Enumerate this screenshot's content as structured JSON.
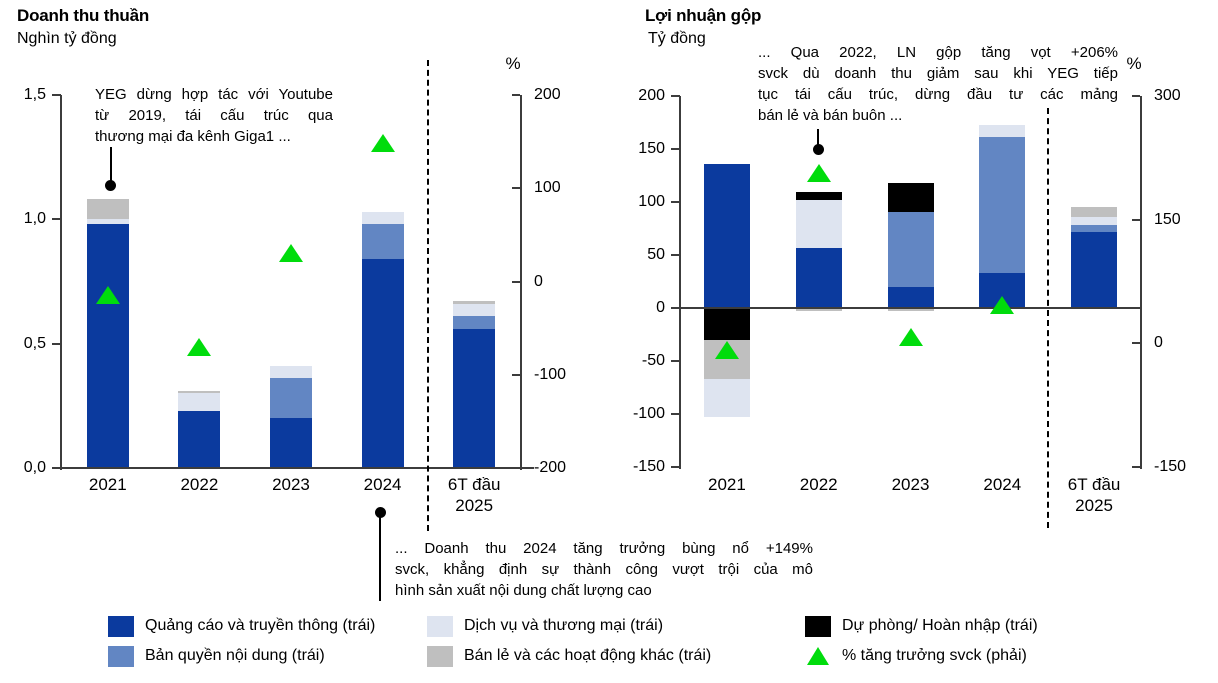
{
  "colors": {
    "dark_blue": "#0B3A9E",
    "medium_blue": "#6286C3",
    "light_blue": "#DEE4F0",
    "gray": "#BFBFBF",
    "black": "#000000",
    "green": "#00DC0C",
    "axis": "#3C3C3C"
  },
  "series_names": {
    "dark_blue": "Quảng cáo và truyền thông",
    "medium_blue": "Bản quyền nội dung",
    "light_blue": "Dịch vụ và thương mại",
    "gray": "Bán lẻ và các hoạt động khác",
    "black": "Dự phòng/ Hoàn nhập"
  },
  "chart_data": [
    {
      "type": "bar",
      "title": "Doanh thu thuần",
      "unit": "Nghìn tỷ đồng",
      "categories": [
        "2021",
        "2022",
        "2023",
        "2024",
        "6T đầu\n2025"
      ],
      "y_axis": {
        "min": 0,
        "max": 1.5,
        "ticks": [
          {
            "label": "1,5",
            "value": 1.5
          },
          {
            "label": "1,0",
            "value": 1.0
          },
          {
            "label": "0,5",
            "value": 0.5
          },
          {
            "label": "0,0",
            "value": 0.0
          }
        ]
      },
      "y2_axis": {
        "symbol": "%",
        "min": -200,
        "max": 200,
        "ticks": [
          {
            "label": "200",
            "value": 200
          },
          {
            "label": "100",
            "value": 100
          },
          {
            "label": "0",
            "value": 0
          },
          {
            "label": "-100",
            "value": -100
          },
          {
            "label": "-200",
            "value": -200
          }
        ]
      },
      "bars": [
        {
          "category": "2021",
          "segments": [
            {
              "key": "dark_blue",
              "value": 0.98
            },
            {
              "key": "light_blue",
              "value": 0.02
            },
            {
              "key": "gray",
              "value": 0.08
            }
          ]
        },
        {
          "category": "2022",
          "segments": [
            {
              "key": "dark_blue",
              "value": 0.23
            },
            {
              "key": "light_blue",
              "value": 0.07
            },
            {
              "key": "gray",
              "value": 0.01
            }
          ]
        },
        {
          "category": "2023",
          "segments": [
            {
              "key": "dark_blue",
              "value": 0.2
            },
            {
              "key": "medium_blue",
              "value": 0.16
            },
            {
              "key": "light_blue",
              "value": 0.05
            }
          ]
        },
        {
          "category": "2024",
          "segments": [
            {
              "key": "dark_blue",
              "value": 0.84
            },
            {
              "key": "medium_blue",
              "value": 0.14
            },
            {
              "key": "light_blue",
              "value": 0.05
            }
          ]
        },
        {
          "category": "6T đầu 2025",
          "segments": [
            {
              "key": "dark_blue",
              "value": 0.56
            },
            {
              "key": "medium_blue",
              "value": 0.05
            },
            {
              "key": "light_blue",
              "value": 0.05
            },
            {
              "key": "gray",
              "value": 0.01
            }
          ]
        }
      ],
      "growth": {
        "name": "% tăng trưởng svck (phải)",
        "axis": "y2",
        "values": [
          -14,
          -70,
          31,
          149,
          null
        ]
      }
    },
    {
      "type": "bar",
      "title": "Lợi nhuận gộp",
      "unit": "Tỷ đồng",
      "categories": [
        "2021",
        "2022",
        "2023",
        "2024",
        "6T đầu\n2025"
      ],
      "y_axis": {
        "min": -150,
        "max": 200,
        "ticks": [
          {
            "label": "200",
            "value": 200
          },
          {
            "label": "150",
            "value": 150
          },
          {
            "label": "100",
            "value": 100
          },
          {
            "label": "50",
            "value": 50
          },
          {
            "label": "0",
            "value": 0
          },
          {
            "label": "-50",
            "value": -50
          },
          {
            "label": "-100",
            "value": -100
          },
          {
            "label": "-150",
            "value": -150
          }
        ]
      },
      "y2_axis": {
        "symbol": "%",
        "min": -150,
        "max": 300,
        "ticks": [
          {
            "label": "300",
            "value": 300
          },
          {
            "label": "150",
            "value": 150
          },
          {
            "label": "0",
            "value": 0
          },
          {
            "label": "-150",
            "value": -150
          }
        ]
      },
      "bars": [
        {
          "category": "2021",
          "segments": [
            {
              "key": "dark_blue",
              "value": 136
            },
            {
              "key": "black",
              "value": -30
            },
            {
              "key": "gray",
              "value": -37
            },
            {
              "key": "light_blue",
              "value": -36
            }
          ]
        },
        {
          "category": "2022",
          "segments": [
            {
              "key": "dark_blue",
              "value": 57
            },
            {
              "key": "light_blue",
              "value": 45
            },
            {
              "key": "black",
              "value": 7
            },
            {
              "key": "gray",
              "value": -3
            }
          ]
        },
        {
          "category": "2023",
          "segments": [
            {
              "key": "dark_blue",
              "value": 20
            },
            {
              "key": "medium_blue",
              "value": 71
            },
            {
              "key": "black",
              "value": 27
            },
            {
              "key": "gray",
              "value": -3
            }
          ]
        },
        {
          "category": "2024",
          "segments": [
            {
              "key": "dark_blue",
              "value": 33
            },
            {
              "key": "medium_blue",
              "value": 128
            },
            {
              "key": "light_blue",
              "value": 12
            }
          ]
        },
        {
          "category": "6T đầu 2025",
          "segments": [
            {
              "key": "dark_blue",
              "value": 72
            },
            {
              "key": "medium_blue",
              "value": 6
            },
            {
              "key": "light_blue",
              "value": 8
            },
            {
              "key": "gray",
              "value": 9
            }
          ]
        }
      ],
      "growth": {
        "name": "% tăng trưởng svck (phải)",
        "axis": "y2",
        "values": [
          -8,
          206,
          8,
          46,
          null
        ]
      }
    }
  ],
  "annotations": {
    "left": {
      "lines": [
        "YEG dừng hợp tác với Youtube",
        "từ 2019, tái cấu trúc qua",
        "thương mại đa kênh Giga1 ..."
      ]
    },
    "right": {
      "lines": [
        "... Qua 2022, LN gộp tăng vọt +206%",
        "svck dù doanh thu giảm sau khi YEG tiếp",
        "tục tái cấu trúc, dừng đầu tư các mảng",
        "bán lẻ và bán buôn ..."
      ]
    },
    "bottom": {
      "lines": [
        "... Doanh thu 2024 tăng trưởng bùng nổ +149%",
        "svck, khẳng định sự thành công vượt trội của mô",
        "hình sản xuất nội dung chất lượng cao"
      ]
    }
  },
  "legend": {
    "items": [
      {
        "label": "Quảng cáo và truyền thông (trái)",
        "swatch": "dark_blue",
        "shape": "square"
      },
      {
        "label": "Dịch vụ và thương mại (trái)",
        "swatch": "light_blue",
        "shape": "square"
      },
      {
        "label": "Dự phòng/ Hoàn nhập (trái)",
        "swatch": "black",
        "shape": "square"
      },
      {
        "label": "Bản quyền nội dung (trái)",
        "swatch": "medium_blue",
        "shape": "square"
      },
      {
        "label": "Bán lẻ và các hoạt động khác (trái)",
        "swatch": "gray",
        "shape": "square"
      },
      {
        "label": "% tăng trưởng svck (phải)",
        "swatch": "green",
        "shape": "triangle"
      }
    ]
  }
}
